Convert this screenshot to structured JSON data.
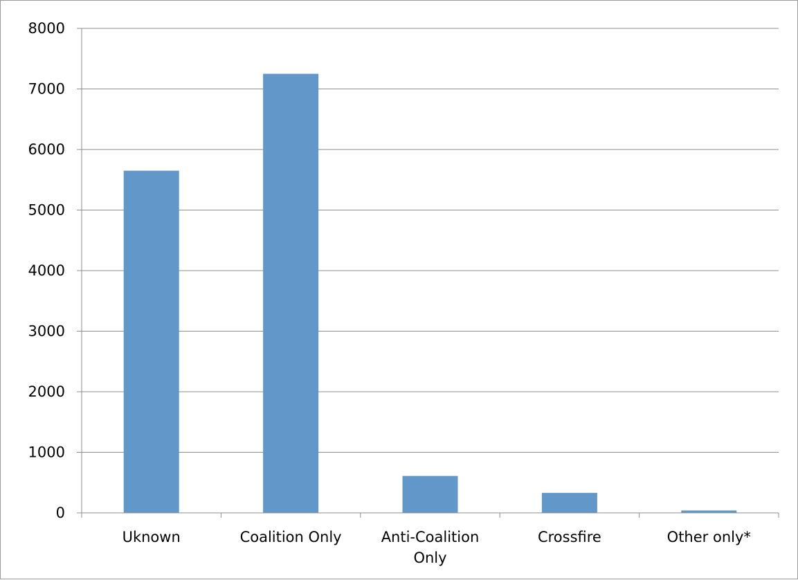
{
  "chart_data": {
    "type": "bar",
    "categories": [
      [
        "Uknown"
      ],
      [
        "Coalition Only"
      ],
      [
        "Anti-Coalition",
        "Only"
      ],
      [
        "Crossfire"
      ],
      [
        "Other only*"
      ]
    ],
    "values": [
      5650,
      7250,
      610,
      330,
      40
    ],
    "ylim": [
      0,
      8000
    ],
    "yticks": [
      "0",
      "1000",
      "2000",
      "3000",
      "4000",
      "5000",
      "6000",
      "7000",
      "8000"
    ],
    "grid": true,
    "legend": "none",
    "colors": {
      "bar": "#6197c9",
      "grid": "#8c8c8c",
      "axis": "#8c8c8c"
    }
  }
}
